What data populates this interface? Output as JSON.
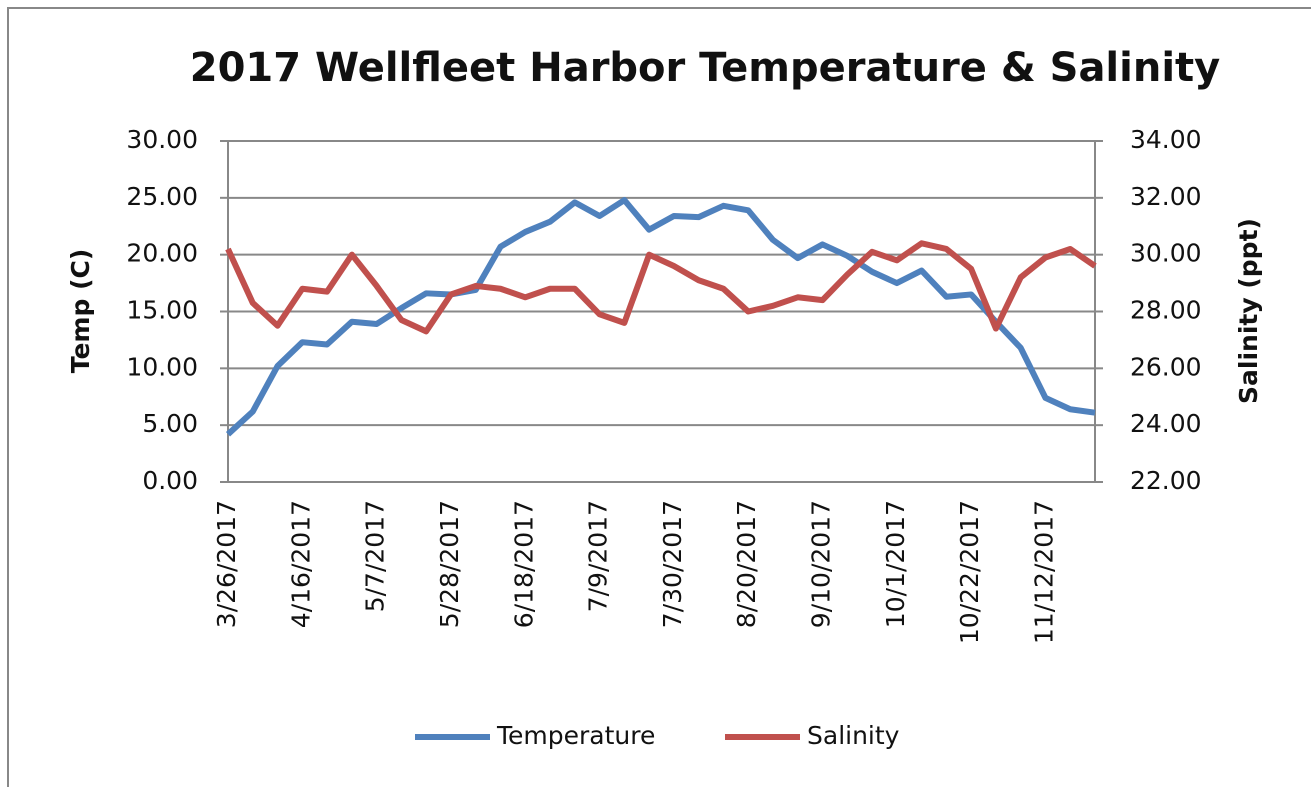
{
  "chart_data": {
    "type": "line",
    "title": "2017 Wellfleet Harbor Temperature & Salinity",
    "ylabel": "Temp (C)",
    "y2label": "Salinity (ppt)",
    "categories": [
      "3/26/2017",
      null,
      null,
      "4/16/2017",
      null,
      null,
      "5/7/2017",
      null,
      null,
      "5/28/2017",
      null,
      null,
      "6/18/2017",
      null,
      null,
      "7/9/2017",
      null,
      null,
      "7/30/2017",
      null,
      null,
      "8/20/2017",
      null,
      null,
      "9/10/2017",
      null,
      null,
      "10/1/2017",
      null,
      null,
      "10/22/2017",
      null,
      null,
      "11/12/2017",
      null,
      null
    ],
    "series": [
      {
        "name": "Temperature",
        "color": "#4f81bd",
        "axis": "y",
        "values": [
          4.2,
          6.2,
          10.2,
          12.3,
          12.1,
          14.1,
          13.9,
          15.3,
          16.6,
          16.5,
          16.9,
          20.7,
          22.0,
          22.9,
          24.6,
          23.4,
          24.8,
          22.2,
          23.4,
          23.3,
          24.3,
          23.9,
          21.3,
          19.7,
          20.9,
          19.9,
          18.5,
          17.5,
          18.6,
          16.3,
          16.5,
          14.1,
          11.8,
          7.4,
          6.4,
          6.1
        ]
      },
      {
        "name": "Salinity",
        "color": "#c0504d",
        "axis": "y2",
        "values": [
          30.2,
          28.3,
          27.5,
          28.8,
          28.7,
          30.0,
          28.9,
          27.7,
          27.3,
          28.6,
          28.9,
          28.8,
          28.5,
          28.8,
          28.8,
          27.9,
          27.6,
          30.0,
          29.6,
          29.1,
          28.8,
          28.0,
          28.2,
          28.5,
          28.4,
          29.3,
          30.1,
          29.8,
          30.4,
          30.2,
          29.5,
          27.4,
          29.2,
          29.9,
          30.2,
          29.6
        ]
      }
    ],
    "ylim": [
      0,
      30
    ],
    "yticks": [
      {
        "value": 0,
        "label": "0.00"
      },
      {
        "value": 5,
        "label": "5.00"
      },
      {
        "value": 10,
        "label": "10.00"
      },
      {
        "value": 15,
        "label": "15.00"
      },
      {
        "value": 20,
        "label": "20.00"
      },
      {
        "value": 25,
        "label": "25.00"
      },
      {
        "value": 30,
        "label": "30.00"
      }
    ],
    "y2lim": [
      22,
      34
    ],
    "y2ticks": [
      {
        "value": 22,
        "label": "22.00"
      },
      {
        "value": 24,
        "label": "24.00"
      },
      {
        "value": 26,
        "label": "26.00"
      },
      {
        "value": 28,
        "label": "28.00"
      },
      {
        "value": 30,
        "label": "30.00"
      },
      {
        "value": 32,
        "label": "32.00"
      },
      {
        "value": 34,
        "label": "34.00"
      }
    ],
    "grid": true,
    "legend": "bottom"
  }
}
